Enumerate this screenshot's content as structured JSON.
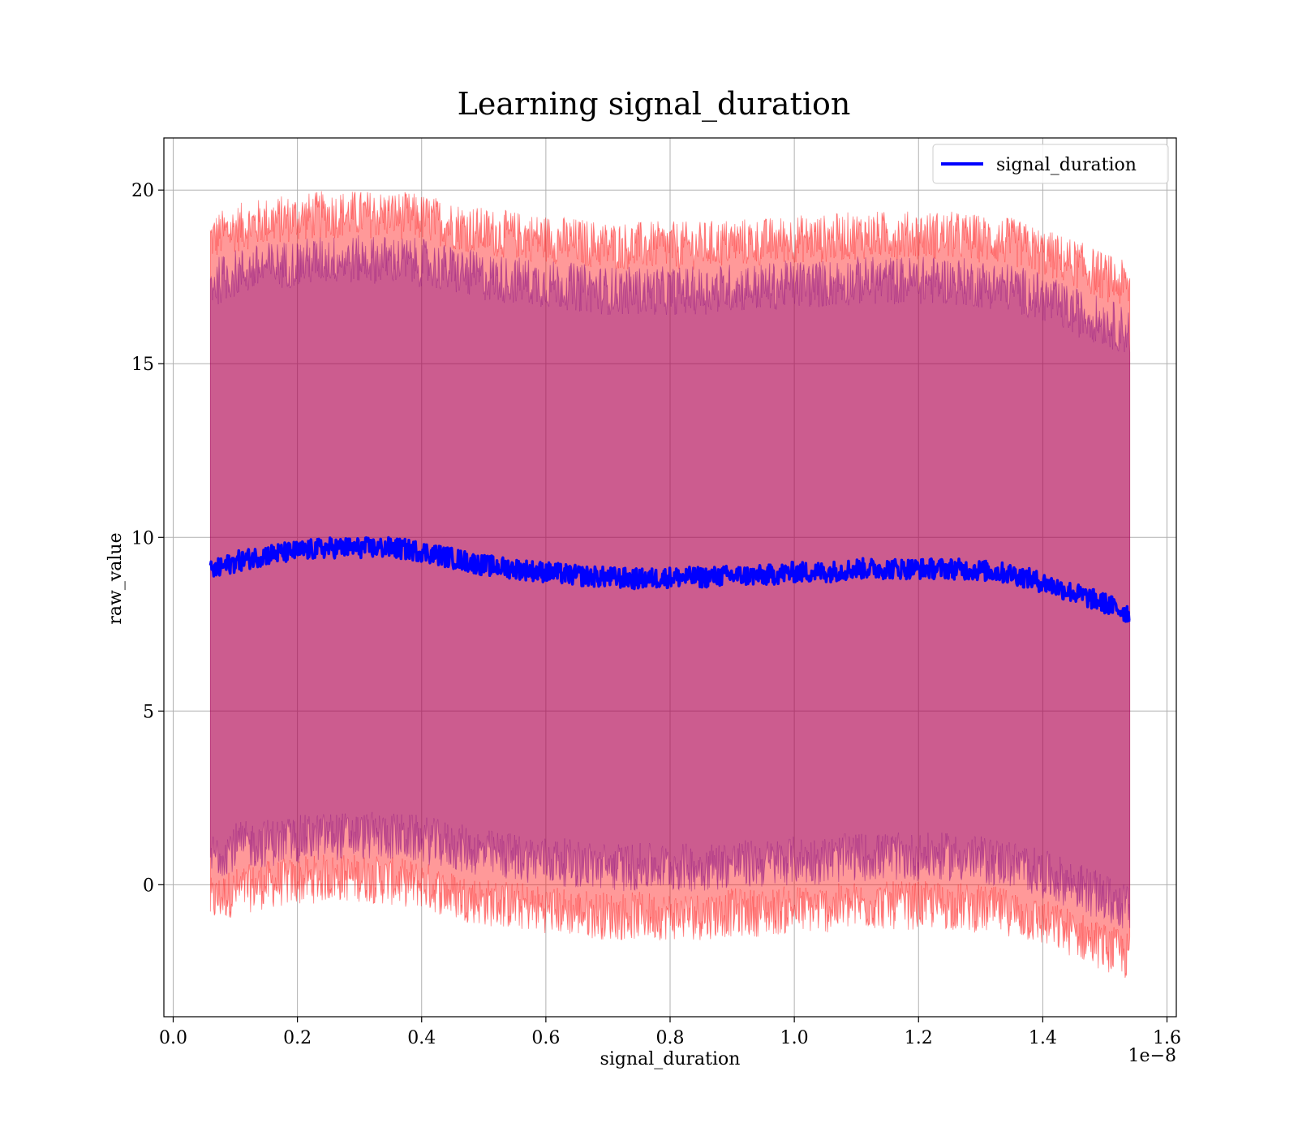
{
  "chart_data": {
    "type": "line",
    "title": "Learning signal_duration",
    "xlabel": "signal_duration",
    "ylabel": "raw_value",
    "x_offset_label": "1e−8",
    "x_scale": 1e-08,
    "xlim": [
      -0.015,
      1.615
    ],
    "ylim": [
      -3.8,
      21.5
    ],
    "x_ticks": [
      0.0,
      0.2,
      0.4,
      0.6,
      0.8,
      1.0,
      1.2,
      1.4,
      1.6
    ],
    "x_tick_labels": [
      "0.0",
      "0.2",
      "0.4",
      "0.6",
      "0.8",
      "1.0",
      "1.2",
      "1.4",
      "1.6"
    ],
    "y_ticks": [
      0,
      5,
      10,
      15,
      20
    ],
    "y_tick_labels": [
      "0",
      "5",
      "10",
      "15",
      "20"
    ],
    "grid": true,
    "legend_position": "top-right",
    "series": [
      {
        "name": "signal_duration",
        "color": "#0000ff",
        "x": [
          0.06,
          0.1,
          0.15,
          0.2,
          0.25,
          0.3,
          0.35,
          0.4,
          0.45,
          0.5,
          0.55,
          0.6,
          0.65,
          0.7,
          0.75,
          0.8,
          0.85,
          0.9,
          0.95,
          1.0,
          1.05,
          1.1,
          1.15,
          1.2,
          1.25,
          1.3,
          1.35,
          1.4,
          1.45,
          1.5,
          1.54
        ],
        "y": [
          9.0,
          9.3,
          9.5,
          9.6,
          9.7,
          9.7,
          9.7,
          9.6,
          9.4,
          9.2,
          9.1,
          9.0,
          8.9,
          8.85,
          8.8,
          8.85,
          8.85,
          8.9,
          8.9,
          9.0,
          9.0,
          9.1,
          9.1,
          9.1,
          9.1,
          9.05,
          8.95,
          8.7,
          8.4,
          8.1,
          7.8
        ]
      }
    ],
    "bands": [
      {
        "color": "#ff0000",
        "lower": [
          -0.5,
          -0.2,
          0.0,
          0.1,
          0.2,
          0.2,
          0.1,
          0.0,
          -0.3,
          -0.5,
          -0.6,
          -0.7,
          -0.8,
          -0.9,
          -0.9,
          -0.9,
          -0.9,
          -0.8,
          -0.8,
          -0.7,
          -0.7,
          -0.6,
          -0.6,
          -0.6,
          -0.6,
          -0.7,
          -0.8,
          -1.1,
          -1.4,
          -1.8,
          -2.1
        ],
        "upper": [
          18.6,
          18.9,
          19.1,
          19.2,
          19.3,
          19.3,
          19.3,
          19.2,
          19.0,
          18.8,
          18.7,
          18.6,
          18.5,
          18.4,
          18.4,
          18.4,
          18.4,
          18.5,
          18.5,
          18.6,
          18.6,
          18.7,
          18.7,
          18.7,
          18.7,
          18.6,
          18.5,
          18.2,
          17.9,
          17.5,
          17.2
        ]
      },
      {
        "color": "#800080",
        "lower": [
          0.8,
          1.1,
          1.2,
          1.3,
          1.4,
          1.4,
          1.4,
          1.3,
          1.1,
          0.9,
          0.8,
          0.7,
          0.6,
          0.5,
          0.5,
          0.5,
          0.5,
          0.6,
          0.6,
          0.7,
          0.7,
          0.8,
          0.8,
          0.8,
          0.8,
          0.7,
          0.6,
          0.3,
          0.0,
          -0.4,
          -0.7
        ],
        "upper": [
          17.3,
          17.6,
          17.8,
          17.9,
          18.0,
          18.0,
          18.0,
          17.9,
          17.7,
          17.5,
          17.4,
          17.3,
          17.2,
          17.1,
          17.1,
          17.1,
          17.1,
          17.2,
          17.2,
          17.3,
          17.3,
          17.4,
          17.4,
          17.4,
          17.4,
          17.3,
          17.2,
          16.9,
          16.5,
          16.2,
          15.9
        ]
      }
    ]
  }
}
